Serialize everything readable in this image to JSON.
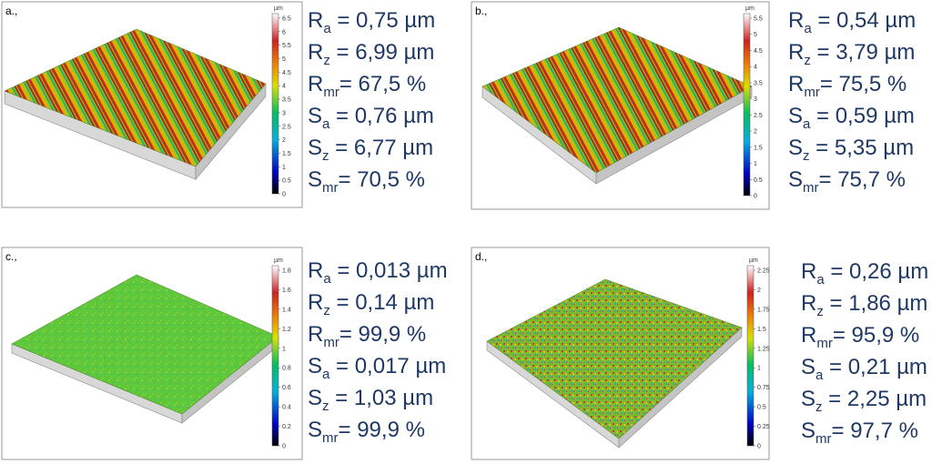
{
  "panels": [
    {
      "label": "a.,",
      "unit": "µm",
      "scale_ticks": [
        "0",
        "0.5",
        "1",
        "1.5",
        "2",
        "2.5",
        "3",
        "3.5",
        "4",
        "4.5",
        "5",
        "5.5",
        "6",
        "6.5"
      ],
      "params": [
        {
          "symbol": "R",
          "sub": "a",
          "value": " = 0,75 µm"
        },
        {
          "symbol": "R",
          "sub": "z",
          "value": " = 6,99 µm"
        },
        {
          "symbol": "R",
          "sub": "mr",
          "value": "= 67,5 %"
        },
        {
          "symbol": "S",
          "sub": "a",
          "value": " = 0,76 µm"
        },
        {
          "symbol": "S",
          "sub": "z",
          "value": " = 6,77 µm"
        },
        {
          "symbol": "S",
          "sub": "mr",
          "value": "= 70,5 %"
        }
      ]
    },
    {
      "label": "b.,",
      "unit": "µm",
      "scale_ticks": [
        "0",
        "0.5",
        "1",
        "1.5",
        "2",
        "2.5",
        "3",
        "3.5",
        "4",
        "4.5",
        "5",
        "5.5"
      ],
      "params": [
        {
          "symbol": "R",
          "sub": "a",
          "value": " = 0,54 µm"
        },
        {
          "symbol": "R",
          "sub": "z",
          "value": " = 3,79 µm"
        },
        {
          "symbol": "R",
          "sub": "mr",
          "value": "= 75,5 %"
        },
        {
          "symbol": "S",
          "sub": "a",
          "value": " = 0,59 µm"
        },
        {
          "symbol": "S",
          "sub": "z",
          "value": " = 5,35 µm"
        },
        {
          "symbol": "S",
          "sub": "mr",
          "value": "= 75,7 %"
        }
      ]
    },
    {
      "label": "c.,",
      "unit": "µm",
      "scale_ticks": [
        "0",
        "0.2",
        "0.4",
        "0.6",
        "0.8",
        "1",
        "1.2",
        "1.4",
        "1.6",
        "1.8"
      ],
      "params": [
        {
          "symbol": "R",
          "sub": "a",
          "value": " = 0,013 µm"
        },
        {
          "symbol": "R",
          "sub": "z",
          "value": " = 0,14 µm"
        },
        {
          "symbol": "R",
          "sub": "mr",
          "value": "= 99,9 %"
        },
        {
          "symbol": "S",
          "sub": "a",
          "value": " = 0,017 µm"
        },
        {
          "symbol": "S",
          "sub": "z",
          "value": " = 1,03 µm"
        },
        {
          "symbol": "S",
          "sub": "mr",
          "value": "= 99,9 %"
        }
      ]
    },
    {
      "label": "d.,",
      "unit": "µm",
      "scale_ticks": [
        "0",
        "0.25",
        "0.5",
        "0.75",
        "1",
        "1.25",
        "1.5",
        "1.75",
        "2",
        "2.25"
      ],
      "params": [
        {
          "symbol": "R",
          "sub": "a",
          "value": " = 0,26 µm"
        },
        {
          "symbol": "R",
          "sub": "z",
          "value": " = 1,86 µm"
        },
        {
          "symbol": "R",
          "sub": "mr",
          "value": "= 95,9 %"
        },
        {
          "symbol": "S",
          "sub": "a",
          "value": " = 0,21 µm"
        },
        {
          "symbol": "S",
          "sub": "z",
          "value": " = 2,25 µm"
        },
        {
          "symbol": "S",
          "sub": "mr",
          "value": "= 97,7 %"
        }
      ]
    }
  ]
}
